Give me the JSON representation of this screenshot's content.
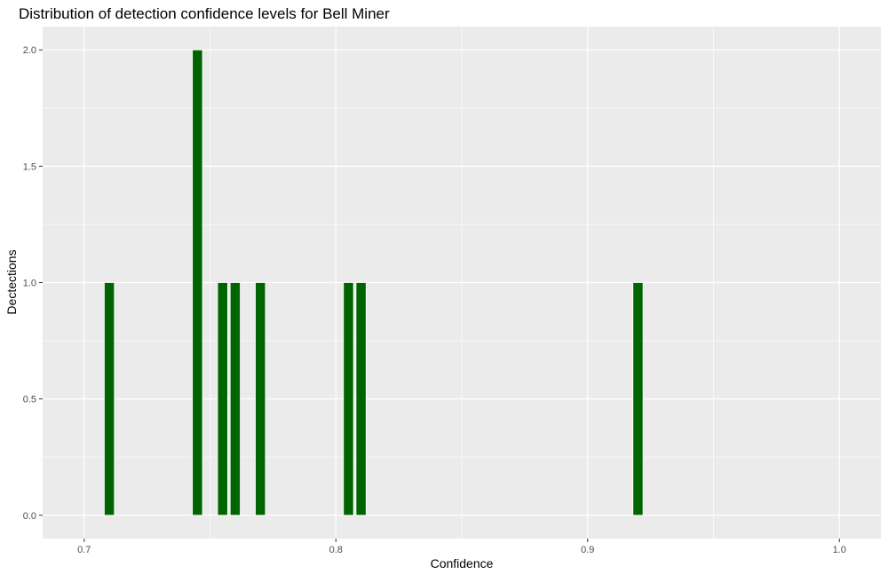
{
  "chart_data": {
    "type": "bar",
    "title": "Distribution of detection confidence levels for Bell Miner",
    "xlabel": "Confidence",
    "ylabel": "Dectections",
    "x": [
      0.71,
      0.745,
      0.755,
      0.76,
      0.77,
      0.805,
      0.81,
      0.92
    ],
    "values": [
      1,
      2,
      1,
      1,
      1,
      1,
      1,
      1
    ],
    "bar_width": 0.004,
    "xlim": [
      0.6835,
      1.0165
    ],
    "ylim": [
      -0.1,
      2.1
    ],
    "x_ticks": [
      0.7,
      0.8,
      0.9,
      1.0
    ],
    "x_tick_labels": [
      "0.7",
      "0.8",
      "0.9",
      "1.0"
    ],
    "y_ticks": [
      0.0,
      0.5,
      1.0,
      1.5,
      2.0
    ],
    "y_tick_labels": [
      "0.0",
      "0.5",
      "1.0",
      "1.5",
      "2.0"
    ],
    "grid": true,
    "colors": {
      "bar": "#006400",
      "bar_outline": "#ffffff",
      "panel": "#ebebeb",
      "grid": "#ffffff"
    }
  }
}
